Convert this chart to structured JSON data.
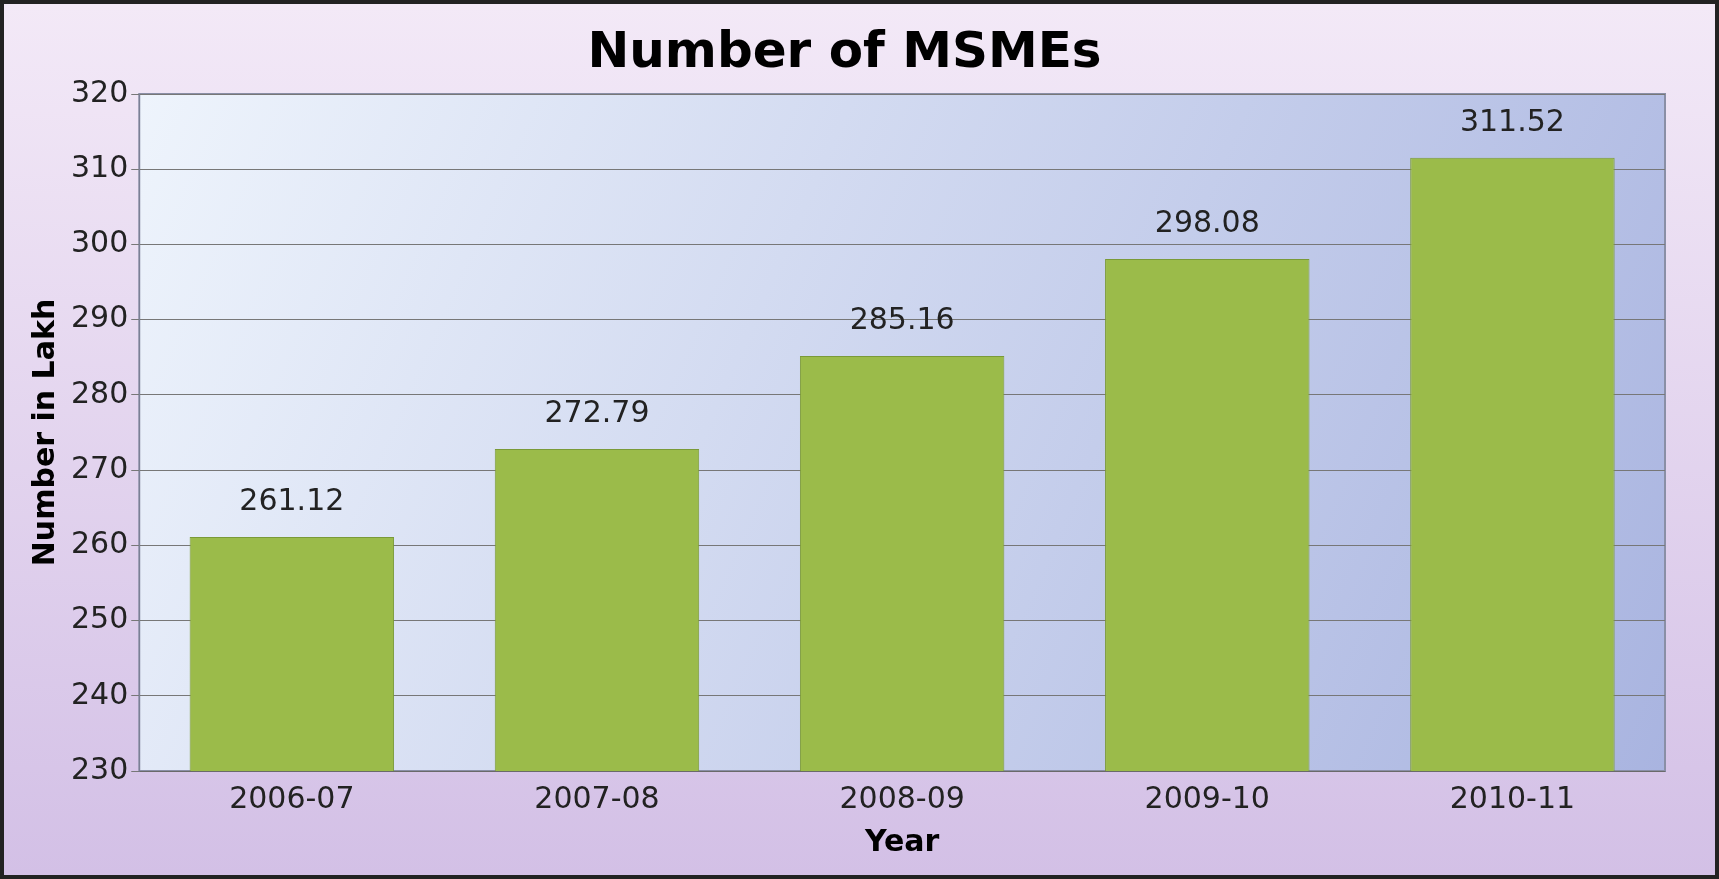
{
  "chart_data": {
    "type": "bar",
    "title": "Number of MSMEs",
    "xlabel": "Year",
    "ylabel": "Number in Lakh",
    "categories": [
      "2006-07",
      "2007-08",
      "2008-09",
      "2009-10",
      "2010-11"
    ],
    "values": [
      261.12,
      272.79,
      285.16,
      298.08,
      311.52
    ],
    "color": "#9bbb4a",
    "ylim": [
      230,
      320
    ],
    "yticks": [
      230,
      240,
      250,
      260,
      270,
      280,
      290,
      300,
      310,
      320
    ],
    "grid": "y",
    "data_labels": true
  }
}
